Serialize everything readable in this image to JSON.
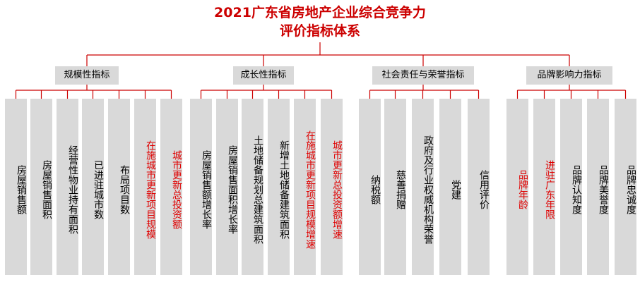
{
  "title_line1": "2021广东省房地产企业综合竞争力",
  "title_line2": "评价指标体系",
  "colors": {
    "title": "#cc0000",
    "line": "#cc0000",
    "box": "#d9d9d9",
    "highlight": "#e00000"
  },
  "categories": [
    {
      "label": "规模性指标",
      "leaves": [
        {
          "label": "房屋销售额",
          "highlight": false
        },
        {
          "label": "房屋销售面积",
          "highlight": false
        },
        {
          "label": "经营性物业持有面积",
          "highlight": false
        },
        {
          "label": "已进驻城市数",
          "highlight": false
        },
        {
          "label": "布局项目数",
          "highlight": false
        },
        {
          "label": "在施城市更新项目规模",
          "highlight": true
        },
        {
          "label": "城市更新总投资额",
          "highlight": true
        }
      ]
    },
    {
      "label": "成长性指标",
      "leaves": [
        {
          "label": "房屋销售额增长率",
          "highlight": false
        },
        {
          "label": "房屋销售面积增长率",
          "highlight": false
        },
        {
          "label": "土地储备规划总建筑面积",
          "highlight": false
        },
        {
          "label": "新增土地储备建筑面积",
          "highlight": false
        },
        {
          "label": "在施城市更新项目规模增速",
          "highlight": true
        },
        {
          "label": "城市更新总投资额增速",
          "highlight": true
        }
      ]
    },
    {
      "label": "社会责任与荣誉指标",
      "leaves": [
        {
          "label": "纳税额",
          "highlight": false
        },
        {
          "label": "慈善捐赠",
          "highlight": false
        },
        {
          "label": "政府及行业权威机构荣誉",
          "highlight": false
        },
        {
          "label": "党建",
          "highlight": false
        },
        {
          "label": "信用评价",
          "highlight": false
        }
      ]
    },
    {
      "label": "品牌影响力指标",
      "leaves": [
        {
          "label": "品牌年龄",
          "highlight": true
        },
        {
          "label": "进驻广东年限",
          "highlight": true
        },
        {
          "label": "品牌认知度",
          "highlight": false
        },
        {
          "label": "品牌美誉度",
          "highlight": false
        },
        {
          "label": "品牌忠诚度",
          "highlight": false
        }
      ]
    }
  ]
}
